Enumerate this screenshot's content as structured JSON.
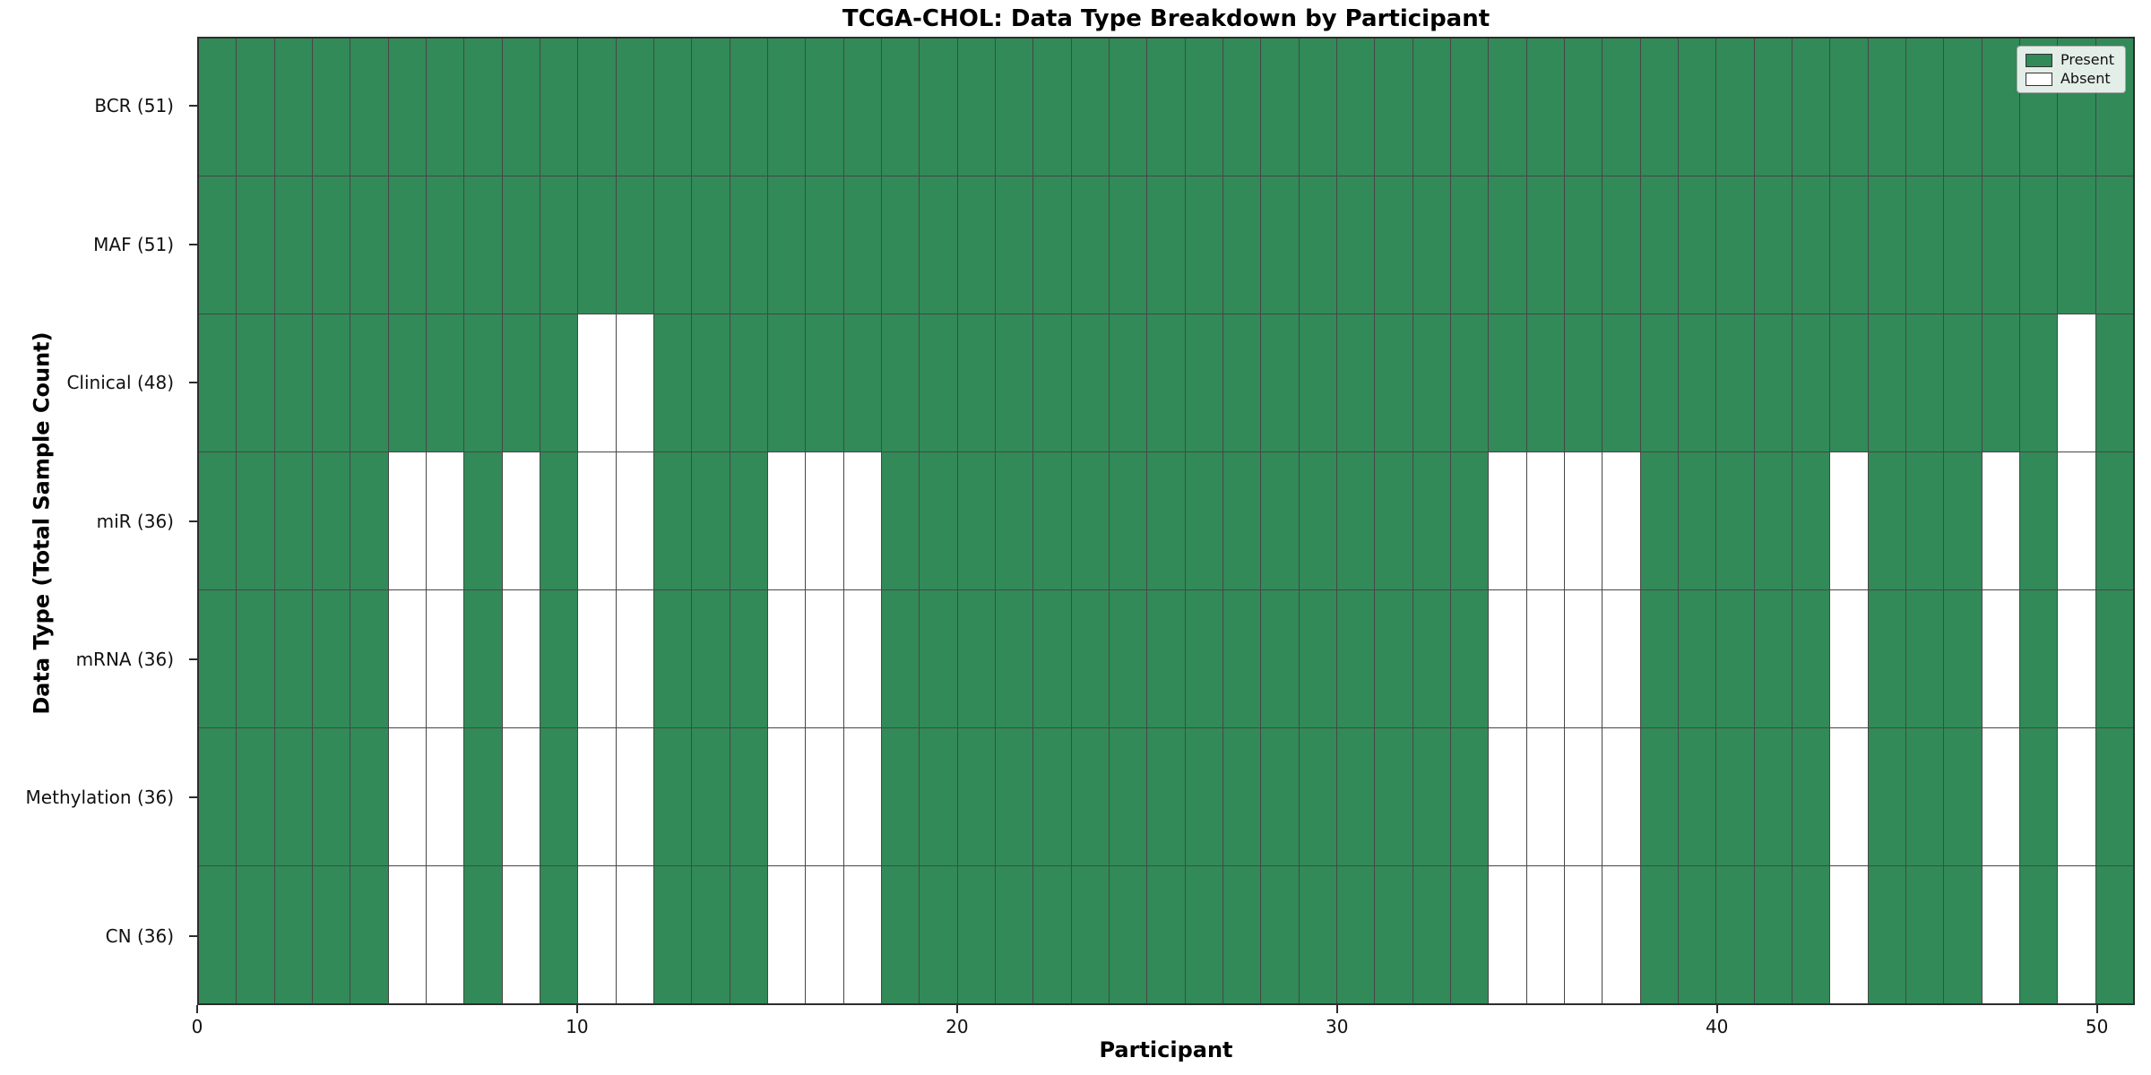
{
  "title": "TCGA-CHOL: Data Type Breakdown by Participant",
  "xlabel": "Participant",
  "ylabel": "Data Type (Total Sample Count)",
  "legend": {
    "present_label": "Present",
    "absent_label": "Absent"
  },
  "colors": {
    "present": "#318a58",
    "absent": "#ffffff",
    "grid": "#474747"
  },
  "chart_data": {
    "type": "heatmap",
    "title": "TCGA-CHOL: Data Type Breakdown by Participant",
    "xlabel": "Participant",
    "ylabel": "Data Type (Total Sample Count)",
    "legend_position": "upper right",
    "legend_entries": [
      "Present",
      "Absent"
    ],
    "n_participants": 51,
    "x_range": [
      0,
      51
    ],
    "x_ticks": [
      0,
      10,
      20,
      30,
      40,
      50
    ],
    "grid": true,
    "rows": [
      {
        "label": "BCR (51)",
        "data_type": "BCR",
        "present_count": 51,
        "absent_participants": []
      },
      {
        "label": "MAF (51)",
        "data_type": "MAF",
        "present_count": 51,
        "absent_participants": []
      },
      {
        "label": "Clinical (48)",
        "data_type": "Clinical",
        "present_count": 48,
        "absent_participants": [
          10,
          11,
          49
        ]
      },
      {
        "label": "miR (36)",
        "data_type": "miR",
        "present_count": 36,
        "absent_participants": [
          5,
          6,
          8,
          10,
          11,
          15,
          16,
          17,
          34,
          35,
          36,
          37,
          43,
          47,
          49
        ]
      },
      {
        "label": "mRNA (36)",
        "data_type": "mRNA",
        "present_count": 36,
        "absent_participants": [
          5,
          6,
          8,
          10,
          11,
          15,
          16,
          17,
          34,
          35,
          36,
          37,
          43,
          47,
          49
        ]
      },
      {
        "label": "Methylation (36)",
        "data_type": "Methylation",
        "present_count": 36,
        "absent_participants": [
          5,
          6,
          8,
          10,
          11,
          15,
          16,
          17,
          34,
          35,
          36,
          37,
          43,
          47,
          49
        ]
      },
      {
        "label": "CN (36)",
        "data_type": "CN",
        "present_count": 36,
        "absent_participants": [
          5,
          6,
          8,
          10,
          11,
          15,
          16,
          17,
          34,
          35,
          36,
          37,
          43,
          47,
          49
        ]
      }
    ]
  }
}
